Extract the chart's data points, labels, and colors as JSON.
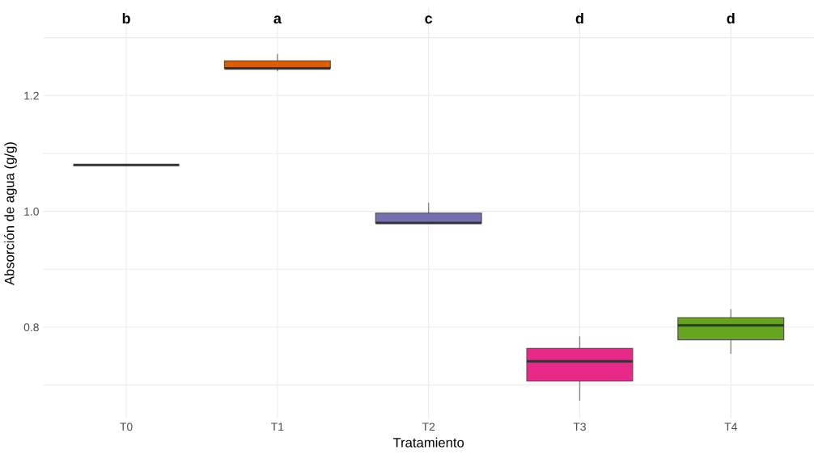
{
  "chart_data": {
    "type": "box",
    "xlabel": "Tratamiento",
    "ylabel": "Absorción de agua (g/g)",
    "categories": [
      "T0",
      "T1",
      "T2",
      "T3",
      "T4"
    ],
    "colors": [
      null,
      "#d95f02",
      "#7570b3",
      "#e7298a",
      "#66a61e"
    ],
    "boxes": [
      {
        "low": 1.08,
        "q1": 1.08,
        "median": 1.08,
        "q3": 1.08,
        "high": 1.08
      },
      {
        "low": 1.243,
        "q1": 1.247,
        "median": 1.247,
        "q3": 1.26,
        "high": 1.271
      },
      {
        "low": 0.98,
        "q1": 0.98,
        "median": 0.98,
        "q3": 0.997,
        "high": 1.014
      },
      {
        "low": 0.674,
        "q1": 0.707,
        "median": 0.741,
        "q3": 0.763,
        "high": 0.783
      },
      {
        "low": 0.755,
        "q1": 0.778,
        "median": 0.803,
        "q3": 0.816,
        "high": 0.83
      }
    ],
    "ylim": [
      0.642,
      1.351
    ],
    "yticks": [
      {
        "value": 0.7,
        "label": null
      },
      0.8,
      {
        "value": 0.9,
        "label": null
      },
      {
        "value": 1.0,
        "label": "1.0"
      },
      {
        "value": 1.1,
        "label": null
      },
      1.2,
      {
        "value": 1.3,
        "label": null
      }
    ],
    "grid": true,
    "annotations": [
      "b",
      "a",
      "c",
      "d",
      "d"
    ]
  }
}
